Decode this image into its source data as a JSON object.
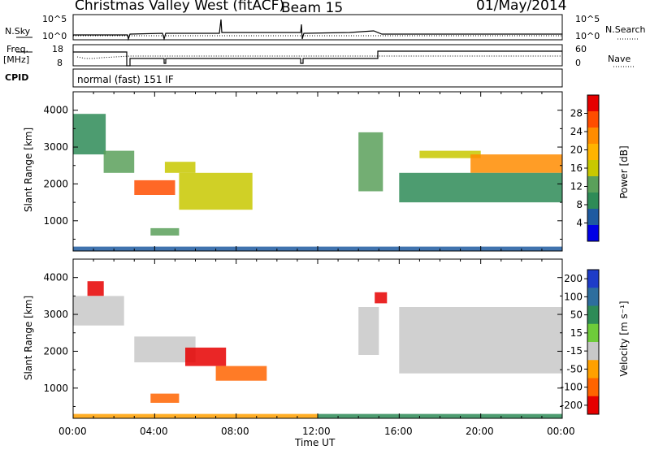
{
  "header": {
    "station": "Christmas Valley West (fitACF)",
    "beam": "Beam 15",
    "date": "01/May/2014"
  },
  "panels": {
    "nsky_label": "N.Sky",
    "nsky_ticks": [
      "10^5",
      "10^0"
    ],
    "nsearch_label": "N.Search",
    "freq_label": "Freq.",
    "freq_unit": "[MHz]",
    "freq_ticks": [
      "18",
      "8"
    ],
    "nave_label": "Nave",
    "nave_ticks": [
      "60",
      "0"
    ],
    "cpid_label": "CPID",
    "cpid_value": "normal (fast) 151 IF"
  },
  "axes": {
    "ylabel": "Slant Range [km]",
    "xlabel": "Time UT",
    "xticks": [
      "00:00",
      "04:00",
      "08:00",
      "12:00",
      "16:00",
      "20:00",
      "00:00"
    ],
    "yticks": [
      "1000",
      "2000",
      "3000",
      "4000"
    ]
  },
  "colorbars": {
    "power": {
      "label": "Power [dB]",
      "ticks": [
        "28",
        "24",
        "20",
        "16",
        "12",
        "8",
        "4"
      ],
      "colors": [
        "#e60000",
        "#ff4d00",
        "#ff8c00",
        "#ffb400",
        "#c8c800",
        "#5aa05a",
        "#2e8b57",
        "#1e5aa0",
        "#0000e6"
      ]
    },
    "velocity": {
      "label": "Velocity [m s⁻¹]",
      "ticks": [
        "200",
        "100",
        "50",
        "15",
        "-15",
        "-50",
        "-100",
        "-200"
      ],
      "colors": [
        "#1e3cc8",
        "#2e6e9e",
        "#2e8b57",
        "#6ecb3a",
        "#c8c8c8",
        "#ffa000",
        "#ff6400",
        "#e60000"
      ]
    }
  },
  "chart_data": [
    {
      "type": "heatmap",
      "name": "power",
      "xlim": [
        0,
        24
      ],
      "ylim": [
        180,
        4500
      ],
      "x_unit": "hours UT",
      "y_unit": "km",
      "regions": [
        {
          "t": [
            0.0,
            1.6
          ],
          "r": [
            2800,
            3900
          ],
          "value": 6
        },
        {
          "t": [
            1.5,
            3.0
          ],
          "r": [
            2300,
            2900
          ],
          "value": 8
        },
        {
          "t": [
            3.0,
            5.0
          ],
          "r": [
            1700,
            2100
          ],
          "value": 24
        },
        {
          "t": [
            4.5,
            6.0
          ],
          "r": [
            2300,
            2600
          ],
          "value": 12
        },
        {
          "t": [
            5.2,
            8.8
          ],
          "r": [
            1300,
            2300
          ],
          "value": 14
        },
        {
          "t": [
            3.8,
            5.2
          ],
          "r": [
            600,
            800
          ],
          "value": 8
        },
        {
          "t": [
            14.0,
            15.2
          ],
          "r": [
            1800,
            3400
          ],
          "value": 8
        },
        {
          "t": [
            17.0,
            20.0
          ],
          "r": [
            2700,
            2900
          ],
          "value": 14
        },
        {
          "t": [
            19.5,
            24.0
          ],
          "r": [
            2300,
            2800
          ],
          "value": 20
        },
        {
          "t": [
            16.0,
            24.0
          ],
          "r": [
            1500,
            2300
          ],
          "value": 6
        },
        {
          "t": [
            0.0,
            24.0
          ],
          "r": [
            180,
            300
          ],
          "value": 4
        }
      ]
    },
    {
      "type": "heatmap",
      "name": "velocity",
      "xlim": [
        0,
        24
      ],
      "ylim": [
        180,
        4500
      ],
      "x_unit": "hours UT",
      "y_unit": "km",
      "regions": [
        {
          "t": [
            0.7,
            1.5
          ],
          "r": [
            3500,
            3900
          ],
          "value": -200
        },
        {
          "t": [
            0.0,
            2.5
          ],
          "r": [
            2700,
            3500
          ],
          "value": 0
        },
        {
          "t": [
            3.0,
            6.0
          ],
          "r": [
            1700,
            2400
          ],
          "value": 0
        },
        {
          "t": [
            5.5,
            7.5
          ],
          "r": [
            1600,
            2100
          ],
          "value": -200
        },
        {
          "t": [
            7.0,
            9.5
          ],
          "r": [
            1200,
            1600
          ],
          "value": -100
        },
        {
          "t": [
            3.8,
            5.2
          ],
          "r": [
            600,
            850
          ],
          "value": -100
        },
        {
          "t": [
            14.8,
            15.4
          ],
          "r": [
            3300,
            3600
          ],
          "value": -200
        },
        {
          "t": [
            14.0,
            15.0
          ],
          "r": [
            1900,
            3200
          ],
          "value": 0
        },
        {
          "t": [
            16.0,
            24.0
          ],
          "r": [
            1400,
            3200
          ],
          "value": 0
        },
        {
          "t": [
            0.0,
            12.0
          ],
          "r": [
            180,
            300
          ],
          "value": -50
        },
        {
          "t": [
            12.0,
            24.0
          ],
          "r": [
            180,
            300
          ],
          "value": 30
        }
      ]
    }
  ]
}
